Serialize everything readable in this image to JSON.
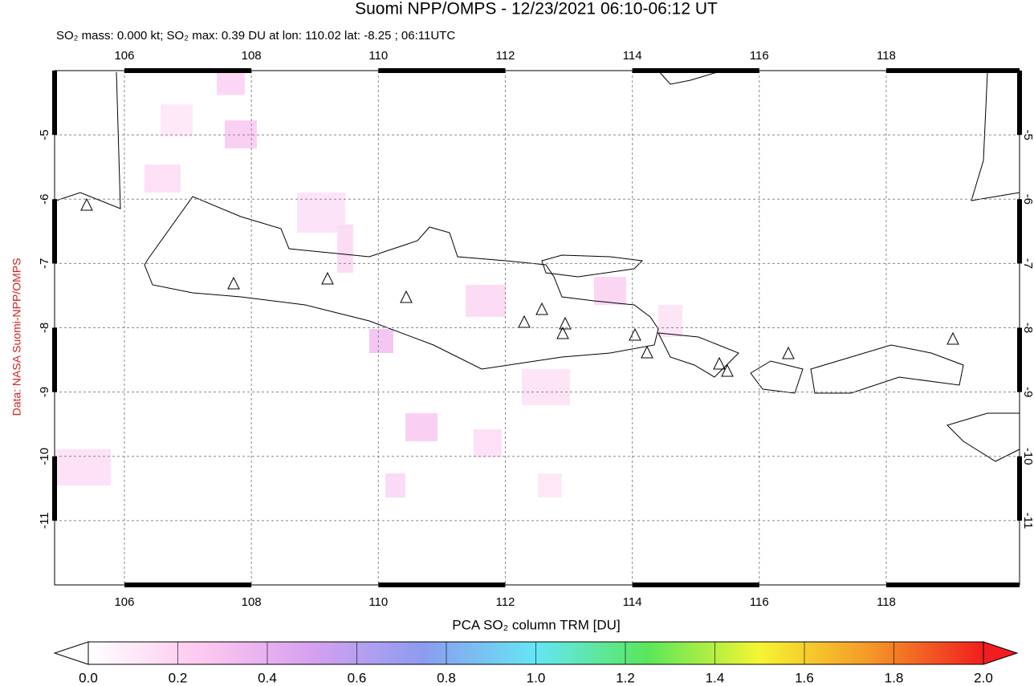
{
  "chart_data": {
    "type": "map",
    "title": "Suomi NPP/OMPS - 12/23/2021 06:10-06:12 UT",
    "subtitle": "SO₂ mass: 0.000 kt; SO₂ max: 0.39 DU at lon: 110.02 lat: -8.25 ; 06:11UTC",
    "credit": "Data: NASA Suomi-NPP/OMPS",
    "xlim": [
      104.9,
      120.1
    ],
    "ylim": [
      -12,
      -4
    ],
    "xticks": [
      106,
      108,
      110,
      112,
      114,
      116,
      118
    ],
    "yticks": [
      -5,
      -6,
      -7,
      -8,
      -9,
      -10,
      -11
    ],
    "grid": true,
    "colorbar": {
      "label": "PCA SO₂ column TRM [DU]",
      "lim": [
        0,
        2
      ],
      "colors": [
        "#ffffff",
        "#ffc8f0",
        "#d6a0f0",
        "#8c9cf0",
        "#64e6f5",
        "#5ae65a",
        "#f5f532",
        "#f59628",
        "#f01e1e"
      ],
      "ticks": [
        {
          "value": 0,
          "label": "0.0"
        },
        {
          "value": 0.2,
          "label": "0.2"
        },
        {
          "value": 0.4,
          "label": "0.4"
        },
        {
          "value": 0.6,
          "label": "0.6"
        },
        {
          "value": 0.8,
          "label": "0.8"
        },
        {
          "value": 1,
          "label": "1.0"
        },
        {
          "value": 1.2,
          "label": "1.2"
        },
        {
          "value": 1.4,
          "label": "1.4"
        },
        {
          "value": 1.6,
          "label": "1.6"
        },
        {
          "value": 1.8,
          "label": "1.8"
        },
        {
          "value": 2,
          "label": "2.0"
        }
      ]
    }
  }
}
